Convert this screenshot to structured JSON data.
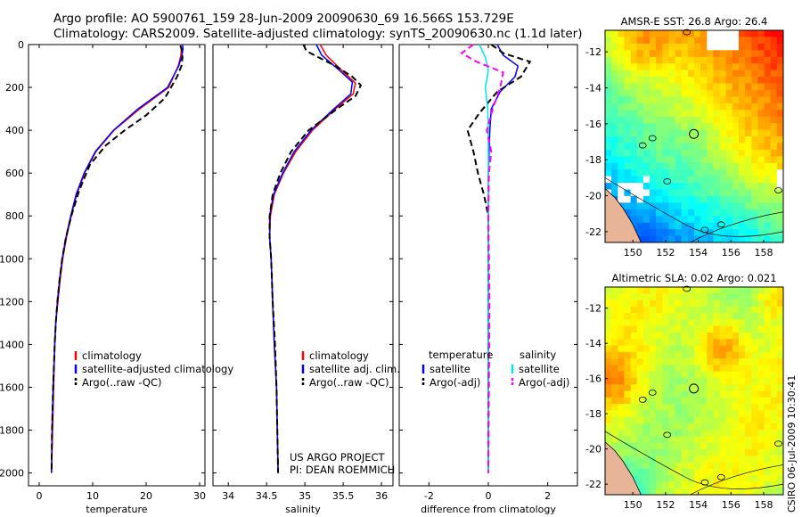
{
  "header": {
    "line1": "Argo profile: AO 5900761_159 28-Jun-2009 20090630_69 16.566S 153.729E",
    "line2": "Climatology: CARS2009. Satellite-adjusted climatology: synTS_20090630.nc (1.1d later)"
  },
  "side_label": "CSIRO 06-Jul-2009 10:30:41",
  "colors": {
    "climatology": "#ff0000",
    "satellite": "#0000ff",
    "argo": "#000000",
    "sat_salinity": "#00e5ee",
    "argo_salinity": "#ff00ff",
    "land": "#e8b497"
  },
  "chart_data": [
    {
      "type": "line",
      "name": "temperature-profile",
      "xlabel": "temperature",
      "xlim": [
        -2,
        31
      ],
      "xticks": [
        "0",
        "10",
        "20",
        "30"
      ],
      "xtick_values": [
        0,
        10,
        20,
        30
      ],
      "ylim": [
        2060,
        0
      ],
      "yticks": [
        "0",
        "200",
        "400",
        "600",
        "800",
        "1000",
        "1200",
        "1400",
        "1600",
        "1800",
        "2000"
      ],
      "ytick_values": [
        0,
        200,
        400,
        600,
        800,
        1000,
        1200,
        1400,
        1600,
        1800,
        2000
      ],
      "legend": [
        "climatology",
        "satellite-adjusted climatology",
        "Argo(..raw -QC)"
      ],
      "series": [
        {
          "name": "climatology",
          "color": "#ff0000",
          "points": [
            [
              26.4,
              0
            ],
            [
              26.6,
              20
            ],
            [
              26.5,
              50
            ],
            [
              26.0,
              100
            ],
            [
              24.2,
              200
            ],
            [
              18.8,
              300
            ],
            [
              14.0,
              400
            ],
            [
              10.6,
              500
            ],
            [
              8.5,
              600
            ],
            [
              7.0,
              700
            ],
            [
              6.0,
              800
            ],
            [
              5.1,
              900
            ],
            [
              4.4,
              1000
            ],
            [
              3.9,
              1100
            ],
            [
              3.5,
              1200
            ],
            [
              3.1,
              1300
            ],
            [
              2.9,
              1400
            ],
            [
              2.7,
              1600
            ],
            [
              2.5,
              1800
            ],
            [
              2.3,
              2000
            ]
          ]
        },
        {
          "name": "satellite-adjusted climatology",
          "color": "#0000ff",
          "points": [
            [
              26.8,
              0
            ],
            [
              26.9,
              20
            ],
            [
              26.7,
              50
            ],
            [
              26.1,
              100
            ],
            [
              24.0,
              200
            ],
            [
              18.5,
              300
            ],
            [
              13.9,
              400
            ],
            [
              10.5,
              500
            ],
            [
              8.4,
              600
            ],
            [
              6.9,
              700
            ],
            [
              5.9,
              800
            ],
            [
              5.0,
              900
            ],
            [
              4.3,
              1000
            ],
            [
              3.8,
              1100
            ],
            [
              3.4,
              1200
            ],
            [
              3.1,
              1300
            ],
            [
              2.9,
              1400
            ],
            [
              2.6,
              1600
            ],
            [
              2.4,
              1800
            ],
            [
              2.3,
              2000
            ]
          ]
        },
        {
          "name": "Argo(..raw -QC)",
          "color": "#000000",
          "dashed": true,
          "points": [
            [
              26.4,
              5
            ],
            [
              26.6,
              20
            ],
            [
              26.8,
              60
            ],
            [
              26.6,
              100
            ],
            [
              25.8,
              150
            ],
            [
              23.5,
              250
            ],
            [
              20.0,
              330
            ],
            [
              16.0,
              400
            ],
            [
              12.5,
              470
            ],
            [
              9.5,
              560
            ],
            [
              7.5,
              680
            ],
            [
              6.0,
              800
            ],
            [
              5.0,
              900
            ],
            [
              4.3,
              1000
            ],
            [
              3.8,
              1100
            ],
            [
              3.4,
              1200
            ],
            [
              3.1,
              1300
            ],
            [
              2.9,
              1400
            ],
            [
              2.6,
              1600
            ],
            [
              2.4,
              1800
            ],
            [
              2.3,
              2000
            ]
          ]
        }
      ]
    },
    {
      "type": "line",
      "name": "salinity-profile",
      "xlabel": "salinity",
      "xlim": [
        33.8,
        36.15
      ],
      "xticks": [
        "34",
        "34.5",
        "35",
        "35.5",
        "36"
      ],
      "xtick_values": [
        34,
        34.5,
        35,
        35.5,
        36
      ],
      "ylim": [
        2060,
        0
      ],
      "legend": [
        "climatology",
        "satellite adj. clim.",
        "Argo(..raw -QC)"
      ],
      "annotation": [
        "US ARGO PROJECT",
        "PI: DEAN ROEMMICH"
      ],
      "series": [
        {
          "name": "climatology",
          "color": "#ff0000",
          "points": [
            [
              35.2,
              0
            ],
            [
              35.28,
              50
            ],
            [
              35.48,
              120
            ],
            [
              35.66,
              180
            ],
            [
              35.63,
              230
            ],
            [
              35.4,
              300
            ],
            [
              35.1,
              400
            ],
            [
              34.88,
              500
            ],
            [
              34.72,
              600
            ],
            [
              34.6,
              700
            ],
            [
              34.55,
              800
            ],
            [
              34.54,
              900
            ],
            [
              34.56,
              1000
            ],
            [
              34.58,
              1200
            ],
            [
              34.6,
              1400
            ],
            [
              34.63,
              1600
            ],
            [
              34.64,
              1800
            ],
            [
              34.65,
              2000
            ]
          ]
        },
        {
          "name": "satellite adj. clim.",
          "color": "#0000ff",
          "points": [
            [
              35.15,
              0
            ],
            [
              35.22,
              50
            ],
            [
              35.45,
              120
            ],
            [
              35.62,
              175
            ],
            [
              35.6,
              230
            ],
            [
              35.38,
              300
            ],
            [
              35.08,
              400
            ],
            [
              34.86,
              500
            ],
            [
              34.71,
              600
            ],
            [
              34.59,
              700
            ],
            [
              34.54,
              800
            ],
            [
              34.54,
              900
            ],
            [
              34.56,
              1000
            ],
            [
              34.58,
              1200
            ],
            [
              34.6,
              1400
            ],
            [
              34.63,
              1600
            ],
            [
              34.64,
              1800
            ],
            [
              34.65,
              2000
            ]
          ]
        },
        {
          "name": "Argo(..raw -QC)",
          "color": "#000000",
          "dashed": true,
          "points": [
            [
              34.98,
              0
            ],
            [
              35.02,
              30
            ],
            [
              35.18,
              60
            ],
            [
              35.4,
              100
            ],
            [
              35.62,
              150
            ],
            [
              35.73,
              190
            ],
            [
              35.66,
              240
            ],
            [
              35.42,
              300
            ],
            [
              35.05,
              400
            ],
            [
              34.82,
              500
            ],
            [
              34.68,
              600
            ],
            [
              34.58,
              700
            ],
            [
              34.54,
              800
            ],
            [
              34.54,
              900
            ],
            [
              34.56,
              1000
            ],
            [
              34.58,
              1200
            ],
            [
              34.61,
              1400
            ],
            [
              34.63,
              1600
            ],
            [
              34.64,
              1800
            ],
            [
              34.65,
              2000
            ]
          ]
        }
      ]
    },
    {
      "type": "line",
      "name": "difference-profile",
      "xlabel": "difference from climatology",
      "xlim": [
        -3.0,
        3.0
      ],
      "xticks": [
        "-2",
        "0",
        "2"
      ],
      "xtick_values": [
        -2,
        0,
        2
      ],
      "ylim": [
        2060,
        0
      ],
      "legend_left_title": "temperature",
      "legend_right_title": "salinity",
      "legend": [
        "satellite",
        "Argo(-adj)",
        "satellite",
        "Argo(-adj)"
      ],
      "series": [
        {
          "name": "temperature satellite",
          "color": "#0000ff",
          "points": [
            [
              0.3,
              0
            ],
            [
              0.5,
              50
            ],
            [
              1.0,
              100
            ],
            [
              0.9,
              150
            ],
            [
              0.4,
              220
            ],
            [
              0.1,
              300
            ],
            [
              0.05,
              400
            ],
            [
              0,
              600
            ],
            [
              0,
              1000
            ],
            [
              0,
              2000
            ]
          ]
        },
        {
          "name": "temperature Argo(-adj)",
          "color": "#000000",
          "dashed": true,
          "points": [
            [
              0.1,
              0
            ],
            [
              0.5,
              40
            ],
            [
              1.4,
              80
            ],
            [
              1.1,
              150
            ],
            [
              0.3,
              220
            ],
            [
              -0.3,
              320
            ],
            [
              -0.7,
              400
            ],
            [
              -0.5,
              500
            ],
            [
              -0.35,
              600
            ],
            [
              -0.15,
              700
            ],
            [
              0,
              800
            ],
            [
              0,
              1000
            ],
            [
              0,
              2000
            ]
          ]
        },
        {
          "name": "salinity satellite",
          "color": "#00e5ee",
          "points": [
            [
              -0.3,
              0
            ],
            [
              -0.1,
              60
            ],
            [
              0.0,
              120
            ],
            [
              -0.1,
              200
            ],
            [
              -0.02,
              300
            ],
            [
              0,
              400
            ],
            [
              0,
              600
            ],
            [
              0,
              1000
            ],
            [
              0,
              2000
            ]
          ]
        },
        {
          "name": "salinity Argo(-adj)",
          "color": "#ff00ff",
          "dashed": true,
          "points": [
            [
              -0.5,
              0
            ],
            [
              -0.9,
              40
            ],
            [
              -0.4,
              80
            ],
            [
              0.5,
              130
            ],
            [
              0.4,
              200
            ],
            [
              0.15,
              300
            ],
            [
              -0.05,
              400
            ],
            [
              0.1,
              500
            ],
            [
              0.02,
              600
            ],
            [
              0,
              800
            ],
            [
              0.02,
              1000
            ],
            [
              0.04,
              1200
            ],
            [
              0.03,
              1400
            ],
            [
              0.02,
              1600
            ],
            [
              0.01,
              1800
            ],
            [
              0,
              2000
            ]
          ]
        }
      ]
    },
    {
      "type": "heatmap",
      "name": "amsr-e-sst-map",
      "title": "AMSR-E SST: 26.8 Argo: 26.4",
      "xlim": [
        148.3,
        159.2
      ],
      "ylim": [
        -22.6,
        -10.8
      ],
      "xticks": [
        "150",
        "152",
        "154",
        "156",
        "158"
      ],
      "xtick_values": [
        150,
        152,
        154,
        156,
        158
      ],
      "yticks": [
        "-12",
        "-14",
        "-16",
        "-18",
        "-20",
        "-22"
      ],
      "ytick_values": [
        -12,
        -14,
        -16,
        -18,
        -20,
        -22
      ],
      "argo_position": [
        153.729,
        -16.566
      ]
    },
    {
      "type": "heatmap",
      "name": "altimetric-sla-map",
      "title": "Altimetric SLA: 0.02 Argo: 0.021",
      "xlim": [
        148.3,
        159.2
      ],
      "ylim": [
        -22.6,
        -10.8
      ],
      "xticks": [
        "150",
        "152",
        "154",
        "156",
        "158"
      ],
      "xtick_values": [
        150,
        152,
        154,
        156,
        158
      ],
      "yticks": [
        "-12",
        "-14",
        "-16",
        "-18",
        "-20",
        "-22"
      ],
      "ytick_values": [
        -12,
        -14,
        -16,
        -18,
        -20,
        -22
      ],
      "argo_position": [
        153.729,
        -16.566
      ]
    }
  ]
}
